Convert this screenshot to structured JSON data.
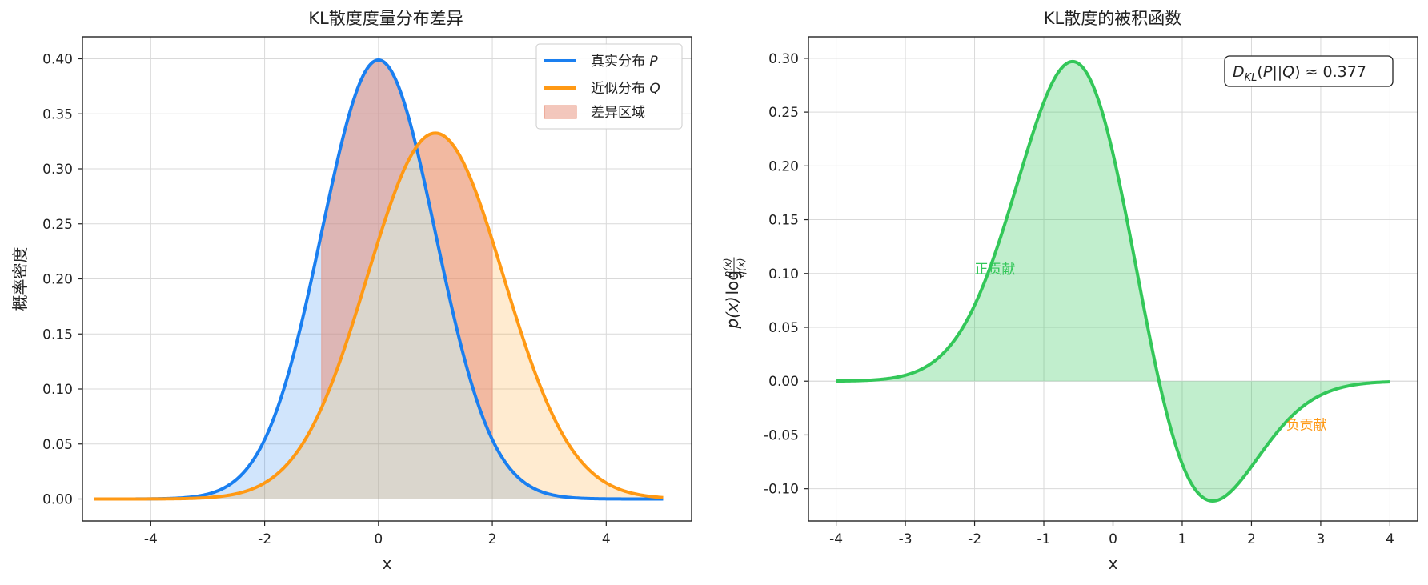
{
  "chart_data": [
    {
      "type": "line",
      "title": "KL散度度量分布差异",
      "xlabel": "x",
      "ylabel": "概率密度",
      "xlim": [
        -5.2,
        5.5
      ],
      "ylim": [
        -0.02,
        0.42
      ],
      "xticks": [
        "-4",
        "-2",
        "0",
        "2",
        "4"
      ],
      "xtick_values": [
        -4,
        -2,
        0,
        2,
        4
      ],
      "yticks": [
        "0.00",
        "0.05",
        "0.10",
        "0.15",
        "0.20",
        "0.25",
        "0.30",
        "0.35",
        "0.40"
      ],
      "ytick_values": [
        0,
        0.05,
        0.1,
        0.15,
        0.2,
        0.25,
        0.3,
        0.35,
        0.4
      ],
      "grid": true,
      "legend_position": "top-right",
      "x_range": [
        -5,
        5
      ],
      "series": [
        {
          "name": "真实分布",
          "name_symbol": "P",
          "distribution": "normal",
          "mean": 0,
          "std": 1,
          "color": "#1a7ff0"
        },
        {
          "name": "近似分布",
          "name_symbol": "Q",
          "distribution": "normal",
          "mean": 1,
          "std": 1.2,
          "color": "#ff9914"
        }
      ],
      "difference_region": {
        "name": "差异区域",
        "x_from": -1,
        "x_to": 2,
        "color": "#e8907a"
      }
    },
    {
      "type": "area",
      "title": "KL散度的被积函数",
      "xlabel": "x",
      "ylabel": "p(x)log(p(x)/q(x))",
      "xlim": [
        -4.4,
        4.4
      ],
      "ylim": [
        -0.13,
        0.32
      ],
      "xticks": [
        "-4",
        "-3",
        "-2",
        "-1",
        "0",
        "1",
        "2",
        "3",
        "4"
      ],
      "xtick_values": [
        -4,
        -3,
        -2,
        -1,
        0,
        1,
        2,
        3,
        4
      ],
      "yticks": [
        "-0.10",
        "-0.05",
        "0.00",
        "0.05",
        "0.10",
        "0.15",
        "0.20",
        "0.25",
        "0.30"
      ],
      "ytick_values": [
        -0.1,
        -0.05,
        0,
        0.05,
        0.1,
        0.15,
        0.2,
        0.25,
        0.3
      ],
      "grid": true,
      "x_range": [
        -4,
        4
      ],
      "integrand_of": [
        "P",
        "Q"
      ],
      "color": "#33c759",
      "annotation_kl": {
        "label": "D_KL(P||Q) ≈ 0.377",
        "prefix": "≈",
        "value": "0.377",
        "position": "top-right"
      },
      "annotations": [
        {
          "text": "正贡献",
          "x": -2.0,
          "y": 0.1,
          "color": "#33c759"
        },
        {
          "text": "负贡献",
          "x": 2.5,
          "y": -0.045,
          "color": "#ff9914"
        }
      ]
    }
  ]
}
